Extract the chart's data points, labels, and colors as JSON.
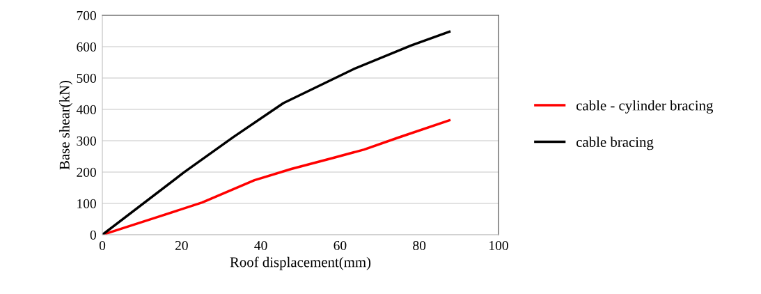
{
  "chart_data": {
    "type": "line",
    "xlabel": "Roof displacement(mm)",
    "ylabel": "Base shear(kN)",
    "xlim": [
      0,
      100
    ],
    "xticks": [
      0,
      20,
      40,
      60,
      80,
      100
    ],
    "ylim": [
      0,
      700
    ],
    "yticks": [
      0,
      100,
      200,
      300,
      400,
      500,
      600,
      700
    ],
    "grid": "y",
    "legend": "right",
    "marker": "none",
    "line_style": "solid",
    "series": [
      {
        "name": "cable - cylinder bracing",
        "color": "#ff0000",
        "x": [
          0,
          14,
          25.2,
          38.4,
          47.7,
          58.2,
          66.1,
          74.7,
          87.6
        ],
        "values": [
          0,
          57,
          103,
          174,
          210,
          245,
          272,
          310,
          365
        ]
      },
      {
        "name": "cable bracing",
        "color": "#000000",
        "x": [
          0,
          20.6,
          33.1,
          45.7,
          63.5,
          78,
          87.6
        ],
        "values": [
          0,
          199,
          312,
          420,
          529,
          604,
          648
        ]
      }
    ]
  }
}
